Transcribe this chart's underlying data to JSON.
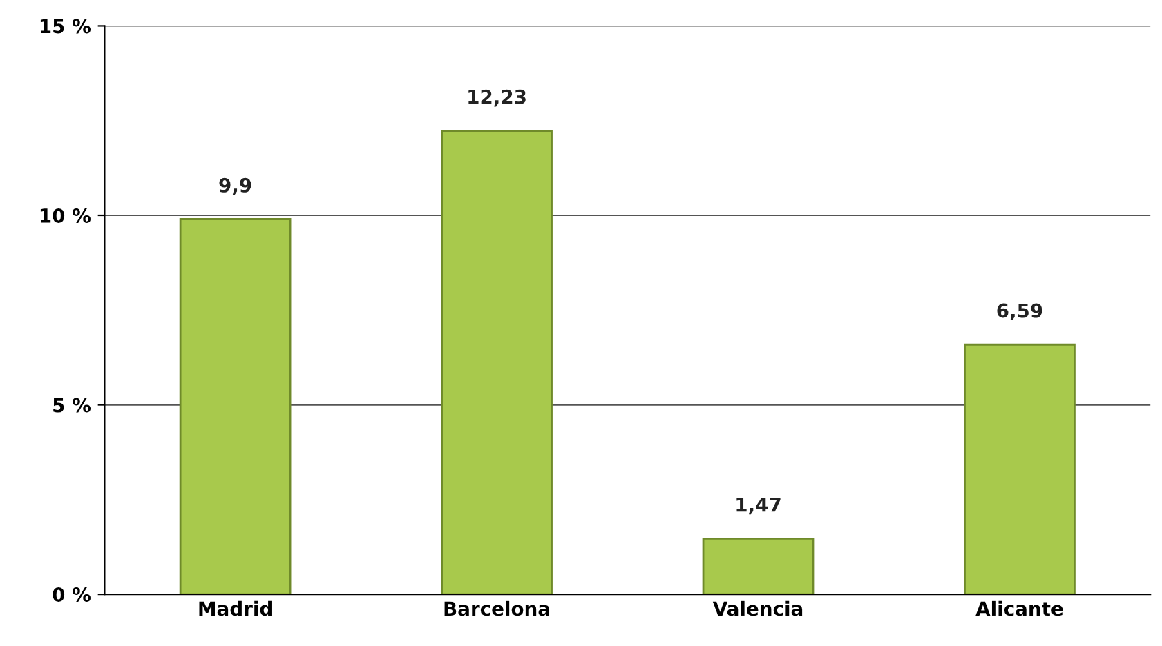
{
  "chart_data": {
    "type": "bar",
    "categories": [
      "Madrid",
      "Barcelona",
      "Valencia",
      "Alicante"
    ],
    "values": [
      9.9,
      12.23,
      1.47,
      6.59
    ],
    "value_labels": [
      "9,9",
      "12,23",
      "1,47",
      "6,59"
    ],
    "color": "#a8c94c",
    "ylim": [
      0,
      15
    ],
    "yticks": [
      {
        "value": 0,
        "label": "0 %"
      },
      {
        "value": 5,
        "label": "5 %"
      },
      {
        "value": 10,
        "label": "10 %"
      },
      {
        "value": 15,
        "label": "15 %"
      }
    ],
    "grid": "y"
  }
}
